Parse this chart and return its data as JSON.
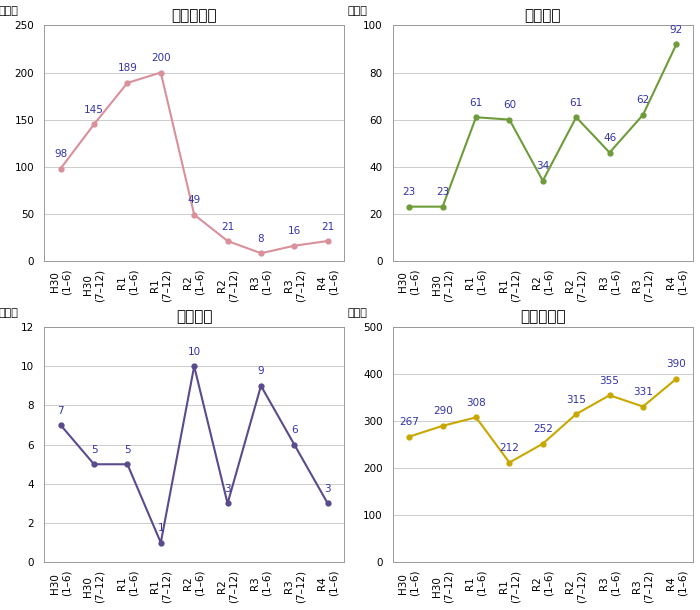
{
  "x_labels": [
    "H30\n(1–6)",
    "H30\n(7–12)",
    "R1\n(1–6)",
    "R1\n(7–12)",
    "R2\n(1–6)",
    "R2\n(7–12)",
    "R3\n(1–6)",
    "R3\n(7–12)",
    "R4\n(1–6)"
  ],
  "charts": [
    {
      "title": "航空機旅客",
      "values": [
        98,
        145,
        189,
        200,
        49,
        21,
        8,
        16,
        21
      ],
      "color": "#d9909a",
      "ylim": [
        0,
        250
      ],
      "yticks": [
        0,
        50,
        100,
        150,
        200,
        250
      ],
      "ylabel": "（件）"
    },
    {
      "title": "航空貨物",
      "values": [
        23,
        23,
        61,
        60,
        34,
        61,
        46,
        62,
        92
      ],
      "color": "#6e9c3a",
      "ylim": [
        0,
        100
      ],
      "yticks": [
        0,
        20,
        40,
        60,
        80,
        100
      ],
      "ylabel": "（件）"
    },
    {
      "title": "海上貨物",
      "values": [
        7,
        5,
        5,
        1,
        10,
        3,
        9,
        6,
        3
      ],
      "color": "#5b4a8c",
      "ylim": [
        0,
        12
      ],
      "yticks": [
        0,
        2,
        4,
        6,
        8,
        10,
        12
      ],
      "ylabel": "（件）"
    },
    {
      "title": "国際郵便物",
      "values": [
        267,
        290,
        308,
        212,
        252,
        315,
        355,
        331,
        390
      ],
      "color": "#c8a800",
      "ylim": [
        0,
        500
      ],
      "yticks": [
        0,
        100,
        200,
        300,
        400,
        500
      ],
      "ylabel": "（件）"
    }
  ],
  "title_fontsize": 11,
  "ylabel_fontsize": 8,
  "tick_fontsize": 7.5,
  "value_fontsize": 7.5,
  "background_color": "#ffffff",
  "grid_color": "#cccccc",
  "value_label_color": "#3333aa"
}
